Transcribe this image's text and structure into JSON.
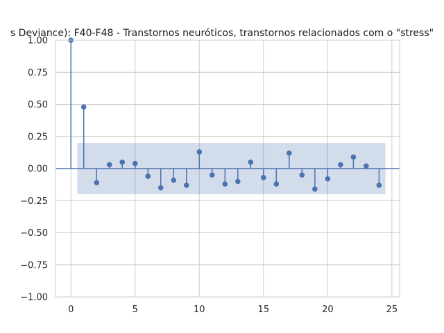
{
  "chart_data": {
    "type": "stem",
    "title": "s Deviance): F40-F48 - Transtornos neuróticos, transtornos relacionados com o \"stress\"",
    "xlabel": "",
    "ylabel": "",
    "xlim": [
      -1.2,
      25.6
    ],
    "ylim": [
      -1.0,
      1.0
    ],
    "xticks": [
      0,
      5,
      10,
      15,
      20,
      25
    ],
    "yticks": [
      -1.0,
      -0.75,
      -0.5,
      -0.25,
      0.0,
      0.25,
      0.5,
      0.75,
      1.0
    ],
    "grid": true,
    "lags": [
      0,
      1,
      2,
      3,
      4,
      5,
      6,
      7,
      8,
      9,
      10,
      11,
      12,
      13,
      14,
      15,
      16,
      17,
      18,
      19,
      20,
      21,
      22,
      23,
      24
    ],
    "values": [
      1.0,
      0.48,
      -0.11,
      0.03,
      0.05,
      0.04,
      -0.06,
      -0.15,
      -0.09,
      -0.13,
      0.13,
      -0.05,
      -0.12,
      -0.1,
      0.05,
      -0.07,
      -0.12,
      0.12,
      -0.05,
      -0.16,
      -0.08,
      0.03,
      0.09,
      0.02,
      -0.13
    ],
    "confidence_band": {
      "x_start": 0.5,
      "x_end": 24.5,
      "upper": 0.2,
      "lower": -0.2
    },
    "colors": {
      "stem": "#4c72b0",
      "band": "#4c72b0",
      "zero_line": "#4c72b0"
    }
  }
}
